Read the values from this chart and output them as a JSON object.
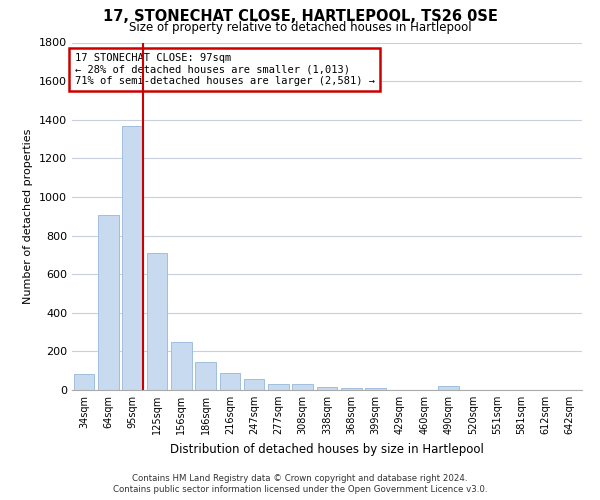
{
  "title": "17, STONECHAT CLOSE, HARTLEPOOL, TS26 0SE",
  "subtitle": "Size of property relative to detached houses in Hartlepool",
  "xlabel": "Distribution of detached houses by size in Hartlepool",
  "ylabel": "Number of detached properties",
  "categories": [
    "34sqm",
    "64sqm",
    "95sqm",
    "125sqm",
    "156sqm",
    "186sqm",
    "216sqm",
    "247sqm",
    "277sqm",
    "308sqm",
    "338sqm",
    "368sqm",
    "399sqm",
    "429sqm",
    "460sqm",
    "490sqm",
    "520sqm",
    "551sqm",
    "581sqm",
    "612sqm",
    "642sqm"
  ],
  "values": [
    85,
    905,
    1365,
    710,
    248,
    143,
    88,
    55,
    33,
    30,
    18,
    10,
    10,
    0,
    0,
    20,
    0,
    0,
    0,
    0,
    0
  ],
  "bar_color": "#c8daf0",
  "bar_edge_color": "#a0bedd",
  "vline_color": "#cc0000",
  "ylim": [
    0,
    1800
  ],
  "yticks": [
    0,
    200,
    400,
    600,
    800,
    1000,
    1200,
    1400,
    1600,
    1800
  ],
  "annotation_text": "17 STONECHAT CLOSE: 97sqm\n← 28% of detached houses are smaller (1,013)\n71% of semi-detached houses are larger (2,581) →",
  "annotation_box_color": "#cc0000",
  "footer_line1": "Contains HM Land Registry data © Crown copyright and database right 2024.",
  "footer_line2": "Contains public sector information licensed under the Open Government Licence v3.0.",
  "bg_color": "#ffffff",
  "grid_color": "#c8d0dc"
}
